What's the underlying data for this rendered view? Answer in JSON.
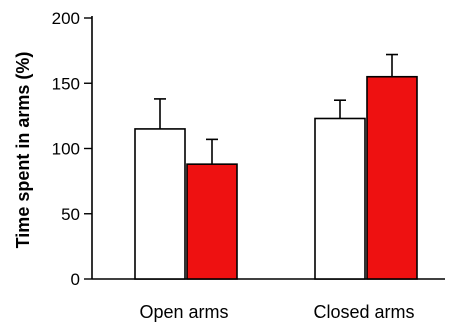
{
  "chart_data": {
    "type": "bar",
    "title": "",
    "xlabel": "",
    "ylabel": "Time spent in arms (%)",
    "ylim": [
      0,
      200
    ],
    "yticks": [
      0,
      50,
      100,
      150,
      200
    ],
    "grid": false,
    "legend": "none",
    "categories": [
      "Open arms",
      "Closed arms"
    ],
    "series": [
      {
        "color": "#ffffff",
        "stroke": "#000000",
        "values": [
          115,
          123
        ],
        "errors": [
          23,
          14
        ]
      },
      {
        "color": "#ee1111",
        "stroke": "#000000",
        "values": [
          88,
          155
        ],
        "errors": [
          19,
          17
        ]
      }
    ]
  }
}
